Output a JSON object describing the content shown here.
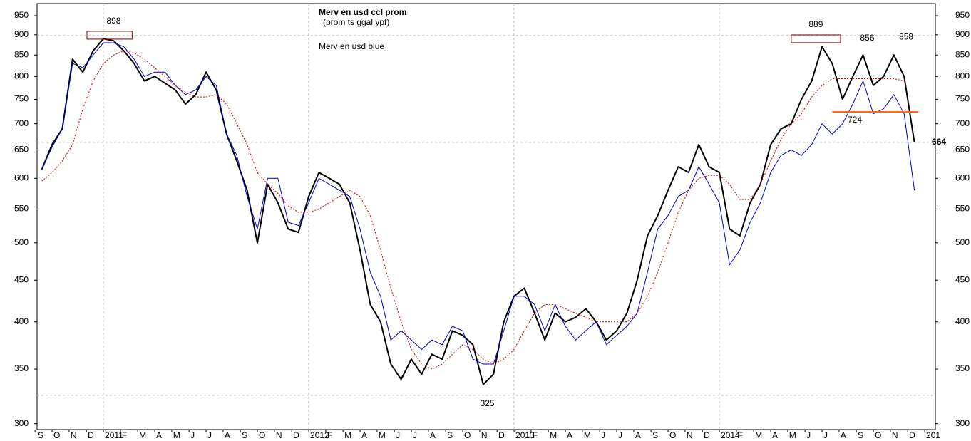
{
  "chart_data": {
    "type": "line",
    "log_scale": true,
    "xlim": [
      2010.677,
      2015.052
    ],
    "ylim": [
      295,
      983
    ],
    "yticks": [
      300,
      350,
      400,
      450,
      500,
      550,
      600,
      650,
      700,
      750,
      800,
      850,
      900,
      950
    ],
    "xticks": [
      {
        "value": 2010.667,
        "label": "S"
      },
      {
        "value": 2010.75,
        "label": "O"
      },
      {
        "value": 2010.833,
        "label": "N"
      },
      {
        "value": 2010.917,
        "label": "D"
      },
      2011,
      {
        "value": 2011.083,
        "label": "F"
      },
      {
        "value": 2011.167,
        "label": "M"
      },
      {
        "value": 2011.25,
        "label": "A"
      },
      {
        "value": 2011.333,
        "label": "M"
      },
      {
        "value": 2011.417,
        "label": "J"
      },
      {
        "value": 2011.5,
        "label": "J"
      },
      {
        "value": 2011.583,
        "label": "A"
      },
      {
        "value": 2011.667,
        "label": "S"
      },
      {
        "value": 2011.75,
        "label": "O"
      },
      {
        "value": 2011.833,
        "label": "N"
      },
      {
        "value": 2011.917,
        "label": "D"
      },
      2012,
      {
        "value": 2012.083,
        "label": "F"
      },
      {
        "value": 2012.167,
        "label": "M"
      },
      {
        "value": 2012.25,
        "label": "A"
      },
      {
        "value": 2012.333,
        "label": "M"
      },
      {
        "value": 2012.417,
        "label": "J"
      },
      {
        "value": 2012.5,
        "label": "J"
      },
      {
        "value": 2012.583,
        "label": "A"
      },
      {
        "value": 2012.667,
        "label": "S"
      },
      {
        "value": 2012.75,
        "label": "O"
      },
      {
        "value": 2012.833,
        "label": "N"
      },
      {
        "value": 2012.917,
        "label": "D"
      },
      2013,
      {
        "value": 2013.083,
        "label": "F"
      },
      {
        "value": 2013.167,
        "label": "M"
      },
      {
        "value": 2013.25,
        "label": "A"
      },
      {
        "value": 2013.333,
        "label": "M"
      },
      {
        "value": 2013.417,
        "label": "J"
      },
      {
        "value": 2013.5,
        "label": "J"
      },
      {
        "value": 2013.583,
        "label": "A"
      },
      {
        "value": 2013.667,
        "label": "S"
      },
      {
        "value": 2013.75,
        "label": "O"
      },
      {
        "value": 2013.833,
        "label": "N"
      },
      {
        "value": 2013.917,
        "label": "D"
      },
      2014,
      {
        "value": 2014.083,
        "label": "F"
      },
      {
        "value": 2014.167,
        "label": "M"
      },
      {
        "value": 2014.25,
        "label": "A"
      },
      {
        "value": 2014.333,
        "label": "M"
      },
      {
        "value": 2014.417,
        "label": "J"
      },
      {
        "value": 2014.5,
        "label": "J"
      },
      {
        "value": 2014.583,
        "label": "A"
      },
      {
        "value": 2014.667,
        "label": "S"
      },
      {
        "value": 2014.75,
        "label": "O"
      },
      {
        "value": 2014.833,
        "label": "N"
      },
      {
        "value": 2014.917,
        "label": "D"
      },
      {
        "value": 2015,
        "label": "201"
      }
    ],
    "subtitle": "(prom ts ggal ypf)",
    "x": [
      2010.7,
      2010.75,
      2010.8,
      2010.85,
      2010.9,
      2010.95,
      2011.0,
      2011.05,
      2011.1,
      2011.15,
      2011.2,
      2011.25,
      2011.3,
      2011.35,
      2011.4,
      2011.45,
      2011.5,
      2011.55,
      2011.6,
      2011.65,
      2011.7,
      2011.75,
      2011.8,
      2011.85,
      2011.9,
      2011.95,
      2012.0,
      2012.05,
      2012.1,
      2012.15,
      2012.2,
      2012.25,
      2012.3,
      2012.35,
      2012.4,
      2012.45,
      2012.5,
      2012.55,
      2012.6,
      2012.65,
      2012.7,
      2012.75,
      2012.8,
      2012.85,
      2012.9,
      2012.95,
      2013.0,
      2013.05,
      2013.1,
      2013.15,
      2013.2,
      2013.25,
      2013.3,
      2013.35,
      2013.4,
      2013.45,
      2013.5,
      2013.55,
      2013.6,
      2013.65,
      2013.7,
      2013.75,
      2013.8,
      2013.85,
      2013.9,
      2013.95,
      2014.0,
      2014.05,
      2014.1,
      2014.15,
      2014.2,
      2014.25,
      2014.3,
      2014.35,
      2014.4,
      2014.45,
      2014.5,
      2014.55,
      2014.6,
      2014.65,
      2014.7,
      2014.75,
      2014.8,
      2014.85,
      2014.9,
      2014.95
    ],
    "series": [
      {
        "name": "Merv en usd ccl prom",
        "color": "#000000",
        "width": 2,
        "values": [
          615,
          660,
          690,
          840,
          810,
          860,
          890,
          885,
          860,
          830,
          790,
          800,
          785,
          770,
          740,
          760,
          810,
          770,
          680,
          630,
          580,
          500,
          590,
          560,
          520,
          515,
          570,
          610,
          600,
          590,
          560,
          490,
          420,
          400,
          355,
          340,
          360,
          345,
          365,
          360,
          390,
          385,
          375,
          335,
          345,
          400,
          430,
          440,
          410,
          380,
          410,
          400,
          405,
          415,
          400,
          380,
          390,
          410,
          450,
          510,
          540,
          580,
          620,
          610,
          660,
          620,
          610,
          520,
          510,
          560,
          590,
          660,
          690,
          700,
          750,
          790,
          870,
          830,
          750,
          800,
          850,
          780,
          800,
          850,
          800,
          664
        ]
      },
      {
        "name": "Merv en usd blue",
        "color": "#0000cc",
        "width": 1,
        "values": [
          615,
          655,
          690,
          830,
          820,
          850,
          880,
          880,
          870,
          840,
          800,
          810,
          810,
          780,
          760,
          770,
          800,
          780,
          680,
          640,
          570,
          520,
          600,
          600,
          530,
          525,
          560,
          600,
          590,
          580,
          570,
          520,
          460,
          430,
          380,
          390,
          380,
          370,
          380,
          375,
          395,
          390,
          360,
          355,
          355,
          390,
          430,
          430,
          420,
          390,
          420,
          395,
          380,
          390,
          400,
          375,
          385,
          395,
          410,
          460,
          520,
          540,
          570,
          580,
          620,
          590,
          560,
          470,
          490,
          530,
          560,
          610,
          640,
          650,
          640,
          660,
          700,
          680,
          700,
          740,
          790,
          720,
          730,
          760,
          720,
          580
        ]
      },
      {
        "color": "#dd0000",
        "width": 1,
        "dashed": true,
        "values": [
          595,
          610,
          630,
          660,
          730,
          790,
          830,
          850,
          860,
          855,
          840,
          820,
          800,
          780,
          765,
          755,
          755,
          760,
          740,
          700,
          660,
          610,
          590,
          575,
          555,
          545,
          545,
          550,
          560,
          570,
          580,
          570,
          540,
          490,
          440,
          400,
          370,
          355,
          350,
          355,
          365,
          375,
          370,
          360,
          355,
          360,
          370,
          390,
          410,
          420,
          420,
          415,
          410,
          405,
          400,
          400,
          400,
          400,
          410,
          430,
          460,
          500,
          545,
          580,
          600,
          605,
          605,
          590,
          565,
          565,
          590,
          630,
          670,
          700,
          720,
          755,
          780,
          795,
          795,
          795,
          795,
          795,
          795,
          795,
          790,
          null
        ]
      }
    ],
    "annotations": [
      {
        "x": 2011.05,
        "value": 898,
        "position": "above",
        "guide": true,
        "box": [
          2010.92,
          2011.14
        ]
      },
      {
        "x": 2014.47,
        "value": 889,
        "position": "above",
        "box": [
          2014.35,
          2014.59
        ]
      },
      {
        "x": 2014.72,
        "value": 856,
        "position": "above"
      },
      {
        "x": 2014.91,
        "value": 858,
        "position": "above"
      },
      {
        "x": 2014.66,
        "value": 724,
        "position": "below",
        "line": [
          2014.55,
          2014.97
        ]
      },
      {
        "x": 2012.87,
        "value": 325,
        "position": "below",
        "guide": true
      },
      {
        "x": 2015.0,
        "value": 664,
        "position": "right",
        "guide": true,
        "bold": true
      }
    ]
  }
}
